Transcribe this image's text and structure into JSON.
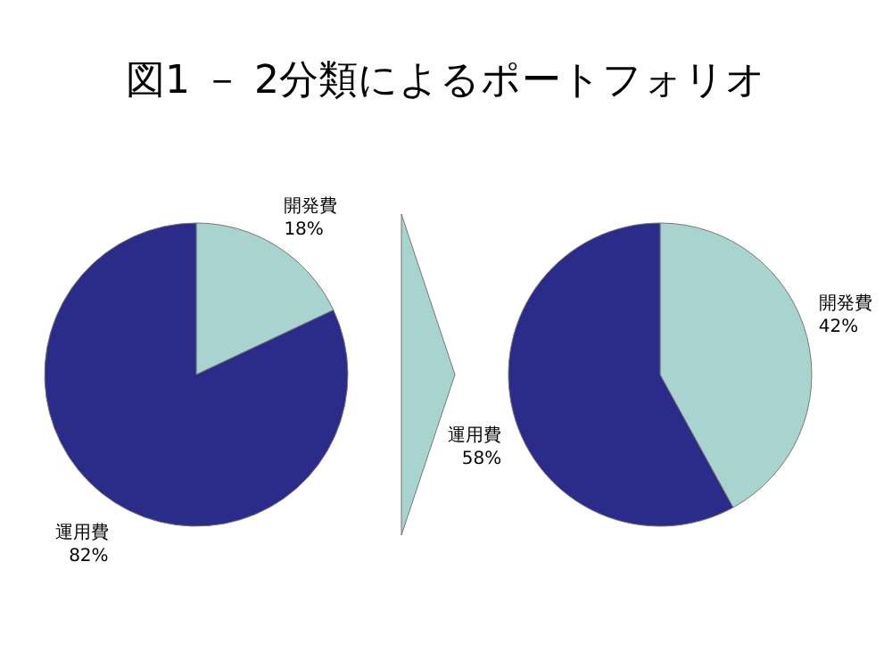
{
  "chart_data": [
    {
      "type": "pie",
      "title": "図1 － 2分類によるポートフォリオ",
      "categories": [
        "開発費",
        "運用費"
      ],
      "values": [
        18,
        82
      ],
      "value_labels": [
        "18%",
        "82%"
      ],
      "colors": [
        "#a9d3cf",
        "#2b2b8a"
      ]
    },
    {
      "type": "pie",
      "categories": [
        "開発費",
        "運用費"
      ],
      "values": [
        42,
        58
      ],
      "value_labels": [
        "42%",
        "58%"
      ],
      "colors": [
        "#a9d3cf",
        "#2b2b8a"
      ]
    }
  ]
}
